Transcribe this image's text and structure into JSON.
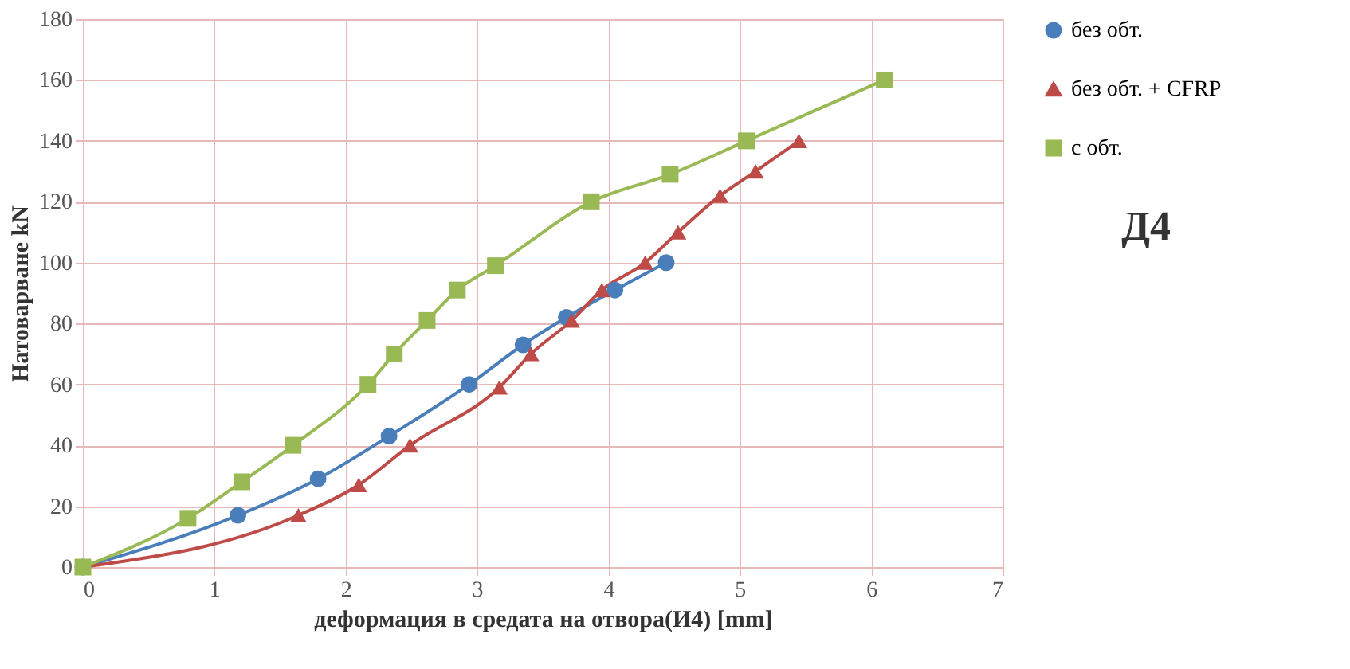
{
  "chart_data": {
    "type": "line",
    "title": "Д4",
    "xlabel": "деформация в средата на отвора(И4) [mm]",
    "ylabel": "Натоварване kN",
    "xlim": [
      0,
      7
    ],
    "xticks": [
      0,
      1,
      2,
      3,
      4,
      5,
      6,
      7
    ],
    "ylim": [
      0,
      180
    ],
    "yticks": [
      0,
      20,
      40,
      60,
      80,
      100,
      120,
      140,
      160,
      180
    ],
    "grid": true,
    "legend": "right",
    "series": [
      {
        "name": "без обт.",
        "color": "#4a7ebb",
        "marker": "circle",
        "x": [
          0,
          1.18,
          1.79,
          2.33,
          2.94,
          3.35,
          3.68,
          4.05,
          4.44
        ],
        "values": [
          0,
          17,
          29,
          43,
          60,
          73,
          82,
          91,
          100
        ]
      },
      {
        "name": "без обт. + CFRP",
        "color": "#be4b48",
        "marker": "triangle",
        "x": [
          0,
          1.64,
          2.1,
          2.49,
          3.17,
          3.41,
          3.72,
          3.95,
          4.28,
          4.53,
          4.85,
          5.12,
          5.45
        ],
        "values": [
          0,
          17,
          27,
          40,
          59,
          70,
          81,
          91,
          100,
          110,
          122,
          130,
          140
        ]
      },
      {
        "name": "с обт.",
        "color": "#98b954",
        "marker": "square",
        "x": [
          0,
          0.8,
          1.21,
          1.6,
          2.17,
          2.37,
          2.62,
          2.85,
          3.14,
          3.87,
          4.47,
          5.05,
          6.1
        ],
        "values": [
          0,
          16,
          28,
          40,
          60,
          70,
          81,
          91,
          99,
          120,
          129,
          140,
          160
        ]
      }
    ]
  }
}
